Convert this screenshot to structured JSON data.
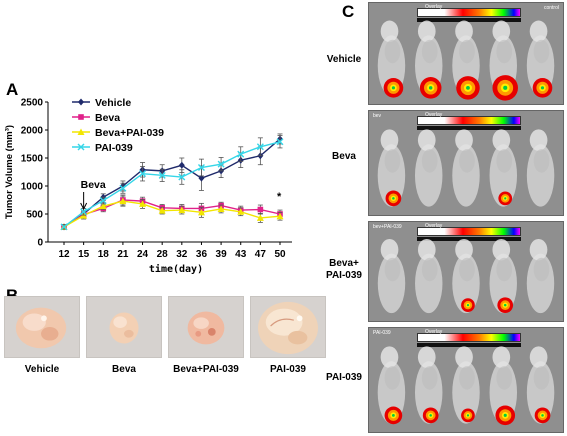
{
  "panels": {
    "a": "A",
    "b": "B",
    "c": "C"
  },
  "chart_data": {
    "type": "line",
    "xlabel": "time(day)",
    "ylabel": "Tumor Volume (mm³)",
    "categories": [
      "12",
      "15",
      "18",
      "21",
      "24",
      "28",
      "32",
      "36",
      "39",
      "43",
      "47",
      "50"
    ],
    "ylim": [
      0,
      2500
    ],
    "yticks": [
      "0",
      "500",
      "1000",
      "1500",
      "2000",
      "2500"
    ],
    "legend_position": "top-left",
    "annotations": {
      "arrow_label": "Beva",
      "arrow_category": "15",
      "significance": "*"
    },
    "series": [
      {
        "name": "Vehicle",
        "color": "#1f2a6b",
        "marker": "diamond",
        "values": [
          270,
          500,
          800,
          1000,
          1290,
          1270,
          1370,
          1140,
          1270,
          1460,
          1540,
          1840
        ],
        "errors": [
          40,
          60,
          60,
          90,
          130,
          110,
          130,
          220,
          120,
          130,
          160,
          90
        ]
      },
      {
        "name": "Beva",
        "color": "#e0218a",
        "marker": "square",
        "values": [
          270,
          490,
          600,
          750,
          730,
          610,
          600,
          600,
          650,
          570,
          580,
          500
        ],
        "errors": [
          40,
          60,
          60,
          90,
          70,
          60,
          70,
          90,
          60,
          70,
          80,
          70
        ]
      },
      {
        "name": "Beva+PAI-039",
        "color": "#f2e600",
        "marker": "triangle",
        "values": [
          270,
          470,
          640,
          730,
          680,
          560,
          570,
          530,
          590,
          540,
          430,
          460
        ],
        "errors": [
          40,
          60,
          60,
          90,
          80,
          60,
          70,
          90,
          70,
          70,
          80,
          70
        ]
      },
      {
        "name": "PAI-039",
        "color": "#35d6e8",
        "marker": "x",
        "values": [
          270,
          540,
          740,
          960,
          1220,
          1190,
          1160,
          1330,
          1390,
          1570,
          1700,
          1790
        ],
        "errors": [
          40,
          60,
          60,
          90,
          130,
          110,
          130,
          150,
          120,
          130,
          160,
          110
        ]
      }
    ]
  },
  "tumor_photos": [
    {
      "label": "Vehicle"
    },
    {
      "label": "Beva"
    },
    {
      "label": "Beva+PAI-039"
    },
    {
      "label": "PAI-039"
    }
  ],
  "ivis_groups": [
    {
      "label_lines": [
        "Vehicle"
      ],
      "tag": "control",
      "colorbar_title": "Overlay"
    },
    {
      "label_lines": [
        "Beva"
      ],
      "tag": "bev",
      "colorbar_title": "Overlay"
    },
    {
      "label_lines": [
        "Beva+",
        "PAI-039"
      ],
      "tag": "bev+PAI-039",
      "colorbar_title": "Overlay"
    },
    {
      "label_lines": [
        "PAI-039"
      ],
      "tag": "PAI-039",
      "colorbar_title": "Overlay"
    }
  ]
}
